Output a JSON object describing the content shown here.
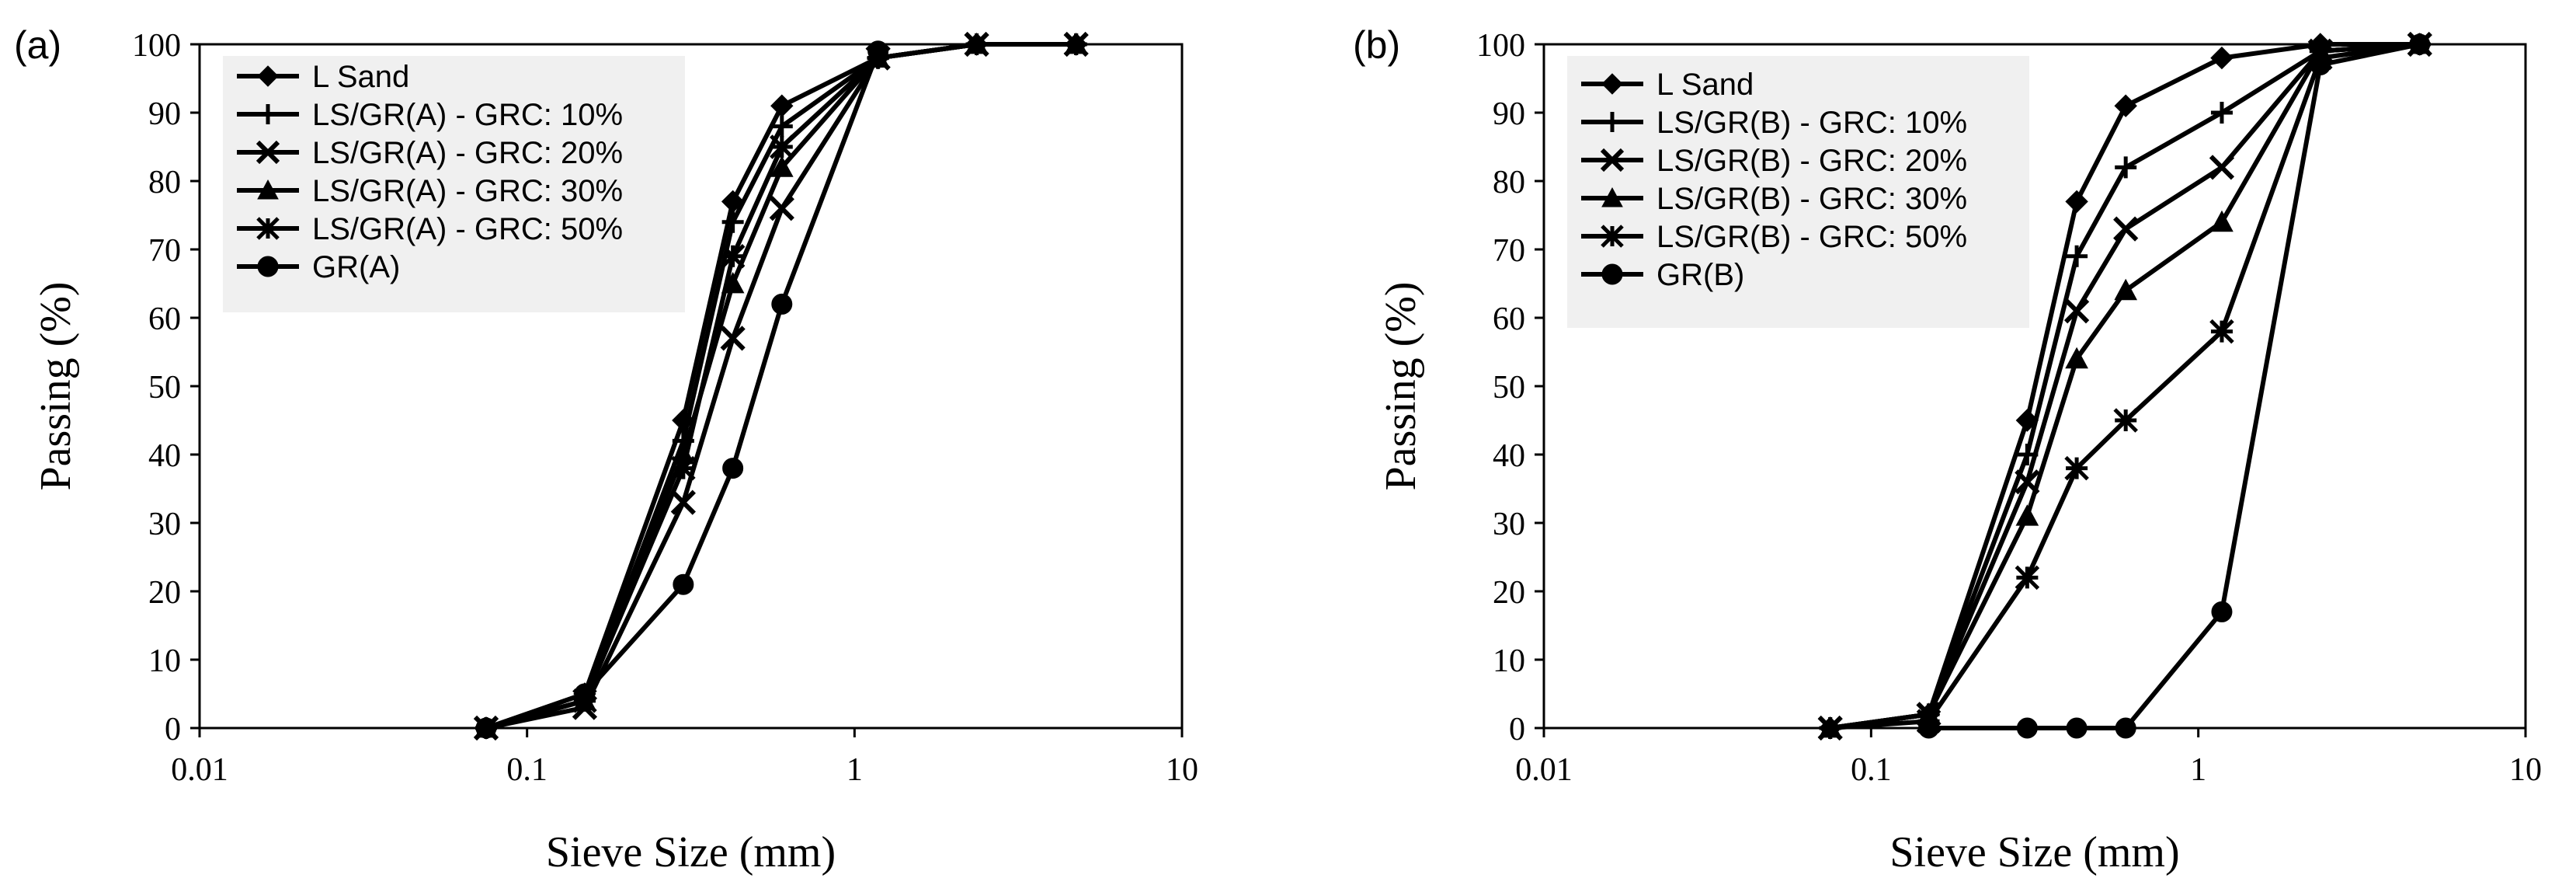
{
  "chart_data": [
    {
      "type": "line",
      "panel_label": "(a)",
      "xlabel": "Sieve Size (mm)",
      "ylabel": "Passing (%)",
      "xscale": "log",
      "xlim": [
        0.01,
        10
      ],
      "ylim": [
        0,
        100
      ],
      "xticks": [
        0.01,
        0.1,
        1,
        10
      ],
      "xtick_labels": [
        "0.01",
        "0.1",
        "1",
        "10"
      ],
      "yticks": [
        0,
        10,
        20,
        30,
        40,
        50,
        60,
        70,
        80,
        90,
        100
      ],
      "ytick_labels": [
        "0",
        "10",
        "20",
        "30",
        "40",
        "50",
        "60",
        "70",
        "80",
        "90",
        "100"
      ],
      "grid": false,
      "legend_position": "top-left",
      "series": [
        {
          "name": "L Sand",
          "marker": "diamond",
          "x": [
            0.075,
            0.15,
            0.3,
            0.425,
            0.6,
            1.18,
            2.36,
            4.75
          ],
          "y": [
            0,
            5,
            45,
            77,
            91,
            98,
            100,
            100
          ]
        },
        {
          "name": "LS/GR(A) - GRC: 10%",
          "marker": "plus",
          "x": [
            0.075,
            0.15,
            0.3,
            0.425,
            0.6,
            1.18,
            2.36,
            4.75
          ],
          "y": [
            0,
            4,
            42,
            74,
            88,
            98,
            100,
            100
          ]
        },
        {
          "name": "LS/GR(A) - GRC: 20%",
          "marker": "x",
          "x": [
            0.075,
            0.15,
            0.3,
            0.425,
            0.6,
            1.18,
            2.36,
            4.75
          ],
          "y": [
            0,
            3,
            33,
            57,
            76,
            98,
            100,
            100
          ]
        },
        {
          "name": "LS/GR(A) - GRC: 30%",
          "marker": "triangle",
          "x": [
            0.075,
            0.15,
            0.3,
            0.425,
            0.6,
            1.18,
            2.36,
            4.75
          ],
          "y": [
            0,
            4,
            40,
            65,
            82,
            98,
            100,
            100
          ]
        },
        {
          "name": "LS/GR(A) - GRC: 50%",
          "marker": "asterisk",
          "x": [
            0.075,
            0.15,
            0.3,
            0.425,
            0.6,
            1.18,
            2.36,
            4.75
          ],
          "y": [
            0,
            4,
            38,
            69,
            85,
            98,
            100,
            100
          ]
        },
        {
          "name": "GR(A)",
          "marker": "circle",
          "x": [
            0.075,
            0.15,
            0.3,
            0.425,
            0.6,
            1.18
          ],
          "y": [
            0,
            5,
            21,
            38,
            62,
            99
          ]
        }
      ]
    },
    {
      "type": "line",
      "panel_label": "(b)",
      "xlabel": "Sieve Size (mm)",
      "ylabel": "Passing (%)",
      "xscale": "log",
      "xlim": [
        0.01,
        10
      ],
      "ylim": [
        0,
        100
      ],
      "xticks": [
        0.01,
        0.1,
        1,
        10
      ],
      "xtick_labels": [
        "0.01",
        "0.1",
        "1",
        "10"
      ],
      "yticks": [
        0,
        10,
        20,
        30,
        40,
        50,
        60,
        70,
        80,
        90,
        100
      ],
      "ytick_labels": [
        "0",
        "10",
        "20",
        "30",
        "40",
        "50",
        "60",
        "70",
        "80",
        "90",
        "100"
      ],
      "grid": false,
      "legend_position": "top-left",
      "series": [
        {
          "name": "L Sand",
          "marker": "diamond",
          "x": [
            0.075,
            0.15,
            0.3,
            0.425,
            0.6,
            1.18,
            2.36,
            4.75
          ],
          "y": [
            0,
            2,
            45,
            77,
            91,
            98,
            100,
            100
          ]
        },
        {
          "name": "LS/GR(B) - GRC: 10%",
          "marker": "plus",
          "x": [
            0.075,
            0.15,
            0.3,
            0.425,
            0.6,
            1.18,
            2.36,
            4.75
          ],
          "y": [
            0,
            2,
            40,
            69,
            82,
            90,
            99,
            100
          ]
        },
        {
          "name": "LS/GR(B) - GRC: 20%",
          "marker": "x",
          "x": [
            0.075,
            0.15,
            0.3,
            0.425,
            0.6,
            1.18,
            2.36,
            4.75
          ],
          "y": [
            0,
            2,
            36,
            61,
            73,
            82,
            99,
            100
          ]
        },
        {
          "name": "LS/GR(B) - GRC: 30%",
          "marker": "triangle",
          "x": [
            0.075,
            0.15,
            0.3,
            0.425,
            0.6,
            1.18,
            2.36,
            4.75
          ],
          "y": [
            0,
            2,
            31,
            54,
            64,
            74,
            99,
            100
          ]
        },
        {
          "name": "LS/GR(B) - GRC: 50%",
          "marker": "asterisk",
          "x": [
            0.075,
            0.15,
            0.3,
            0.425,
            0.6,
            1.18,
            2.36,
            4.75
          ],
          "y": [
            0,
            1,
            22,
            38,
            45,
            58,
            98,
            100
          ]
        },
        {
          "name": "GR(B)",
          "marker": "circle",
          "x": [
            0.15,
            0.3,
            0.425,
            0.6,
            1.18,
            2.36,
            4.75
          ],
          "y": [
            0,
            0,
            0,
            0,
            17,
            97,
            100
          ]
        }
      ]
    }
  ],
  "colors": {
    "line": "#000000",
    "legend_background": "#f0f0f0",
    "background": "#ffffff"
  }
}
